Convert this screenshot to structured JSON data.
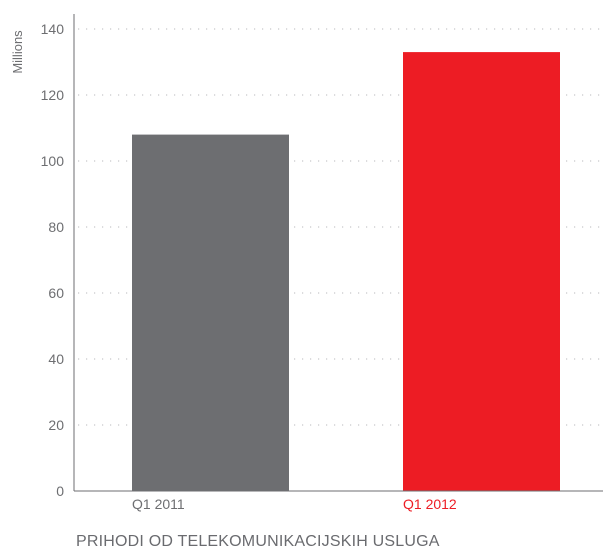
{
  "chart_data": {
    "type": "bar",
    "title": "PRIHODI OD TELEKOMUNIKACIJSKIH USLUGA",
    "ylabel": "Millions",
    "xlabel": "",
    "categories": [
      "Q1 2011",
      "Q1 2012"
    ],
    "values": [
      108,
      133
    ],
    "bar_colors": [
      "#6d6e71",
      "#ed1c24"
    ],
    "label_colors": [
      "#6d6e71",
      "#ed1c24"
    ],
    "ylim": [
      0,
      140
    ],
    "yticks": [
      0,
      20,
      40,
      60,
      80,
      100,
      120,
      140
    ],
    "grid": true,
    "grid_style": "dotted",
    "legend": "none"
  }
}
